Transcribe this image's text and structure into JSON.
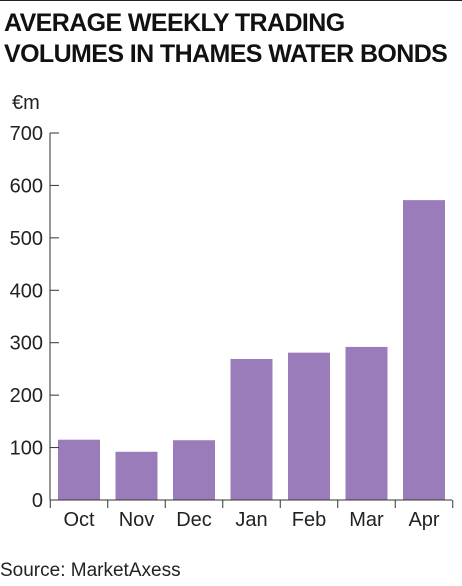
{
  "title_lines": [
    "AVERAGE WEEKLY TRADING",
    "VOLUMES IN THAMES WATER BONDS"
  ],
  "source": "Source: MarketAxess",
  "chart_data": {
    "type": "bar",
    "title": "AVERAGE WEEKLY TRADING VOLUMES IN THAMES WATER BONDS",
    "ylabel": "€m",
    "xlabel": "",
    "categories": [
      "Oct",
      "Nov",
      "Dec",
      "Jan",
      "Feb",
      "Mar",
      "Apr"
    ],
    "values": [
      115,
      92,
      114,
      269,
      281,
      292,
      572
    ],
    "ylim": [
      0,
      700
    ],
    "yticks": [
      0,
      100,
      200,
      300,
      400,
      500,
      600,
      700
    ],
    "grid": false,
    "legend": "none",
    "bar_color": "#9b7cbb",
    "axis_color": "#333333"
  }
}
